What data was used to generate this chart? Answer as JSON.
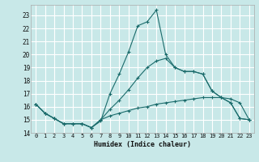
{
  "xlabel": "Humidex (Indice chaleur)",
  "background_color": "#c8e8e8",
  "grid_color": "#ffffff",
  "line_color": "#1a6b6b",
  "xlim": [
    -0.5,
    23.5
  ],
  "ylim": [
    14.0,
    23.8
  ],
  "xticks": [
    0,
    1,
    2,
    3,
    4,
    5,
    6,
    7,
    8,
    9,
    10,
    11,
    12,
    13,
    14,
    15,
    16,
    17,
    18,
    19,
    20,
    21,
    22,
    23
  ],
  "yticks": [
    14,
    15,
    16,
    17,
    18,
    19,
    20,
    21,
    22,
    23
  ],
  "line1_x": [
    0,
    1,
    2,
    3,
    4,
    5,
    6,
    7,
    8,
    9,
    10,
    11,
    12,
    13,
    14,
    15,
    16,
    17,
    18,
    19,
    20,
    21,
    22,
    23
  ],
  "line1_y": [
    16.2,
    15.5,
    15.1,
    14.7,
    14.7,
    14.7,
    14.4,
    15.0,
    15.3,
    15.5,
    15.7,
    15.9,
    16.0,
    16.2,
    16.3,
    16.4,
    16.5,
    16.6,
    16.7,
    16.7,
    16.7,
    16.6,
    16.3,
    15.0
  ],
  "line2_x": [
    0,
    1,
    2,
    3,
    4,
    5,
    6,
    7,
    8,
    9,
    10,
    11,
    12,
    13,
    14,
    15,
    16,
    17,
    18,
    19,
    20,
    21,
    22,
    23
  ],
  "line2_y": [
    16.2,
    15.5,
    15.1,
    14.7,
    14.7,
    14.7,
    14.4,
    15.0,
    15.8,
    16.5,
    17.3,
    18.2,
    19.0,
    19.5,
    19.7,
    19.0,
    18.7,
    18.7,
    18.5,
    17.2,
    16.7,
    16.3,
    15.1,
    15.0
  ],
  "line3_x": [
    0,
    1,
    2,
    3,
    4,
    5,
    6,
    7,
    8,
    9,
    10,
    11,
    12,
    13,
    14,
    15,
    16,
    17,
    18,
    19,
    20,
    21,
    22,
    23
  ],
  "line3_y": [
    16.2,
    15.5,
    15.1,
    14.7,
    14.7,
    14.7,
    14.4,
    14.9,
    17.0,
    18.5,
    20.2,
    22.2,
    22.5,
    23.4,
    20.0,
    19.0,
    18.7,
    18.7,
    18.5,
    17.2,
    16.7,
    16.3,
    15.1,
    15.0
  ]
}
